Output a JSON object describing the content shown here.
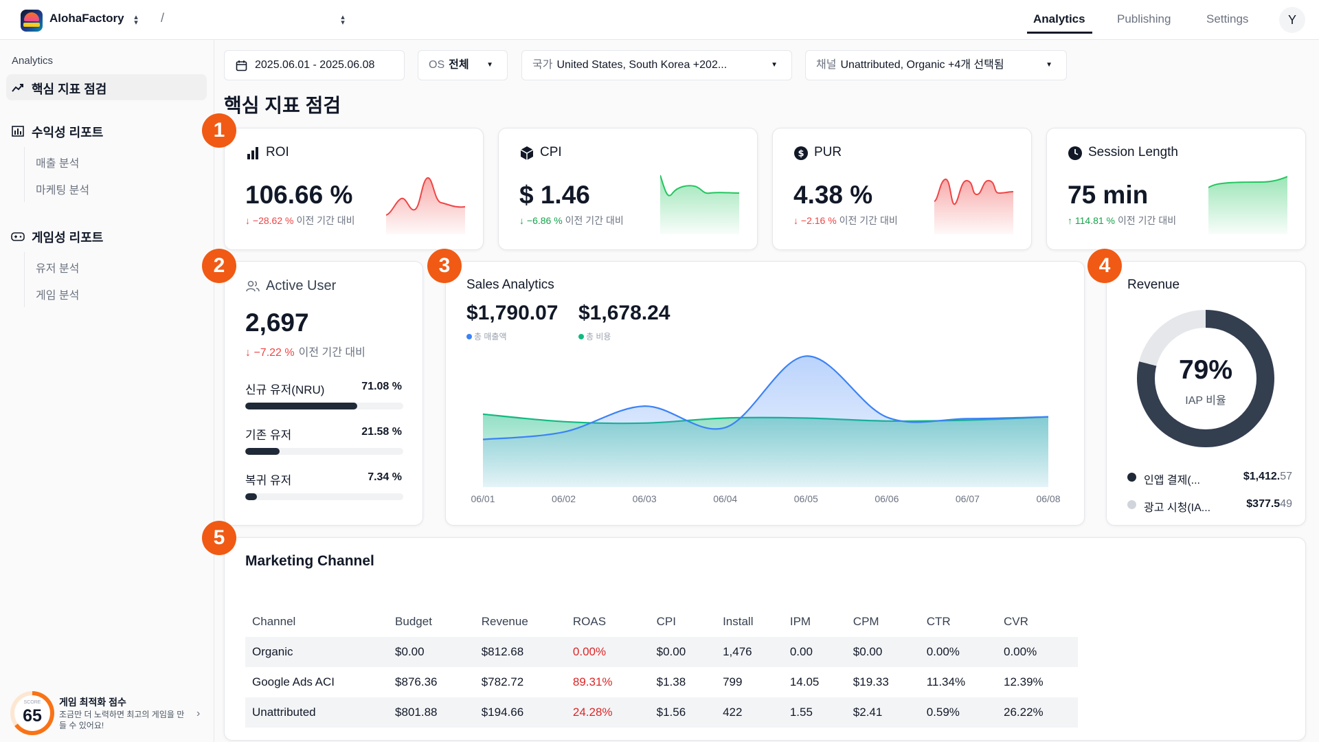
{
  "header": {
    "app_name": "AlohaFactory",
    "breadcrumb_separator": "/",
    "tabs": [
      {
        "label": "Analytics",
        "active": true
      },
      {
        "label": "Publishing",
        "active": false
      },
      {
        "label": "Settings",
        "active": false
      }
    ],
    "avatar_initial": "Y"
  },
  "sidebar": {
    "caption": "Analytics",
    "items": [
      {
        "label": "핵심 지표 점검",
        "icon": "trend-icon",
        "active": true
      },
      {
        "label": "수익성 리포트",
        "icon": "bar-chart-icon",
        "children": [
          "매출 분석",
          "마케팅 분석"
        ]
      },
      {
        "label": "게임성 리포트",
        "icon": "gamepad-icon",
        "children": [
          "유저 분석",
          "게임 분석"
        ]
      }
    ],
    "score": {
      "label": "SCORE",
      "value": "65",
      "value_fraction": 0.65,
      "title": "게임 최적화 점수",
      "desc": "조금만 더 노력하면 최고의 게임을 만들 수 있어요!",
      "accent": "#f97316"
    }
  },
  "filters": {
    "date_range": "2025.06.01 - 2025.06.08",
    "os_label": "OS",
    "os_value": "전체",
    "country_label": "국가",
    "country_value": "United States, South Korea +202...",
    "channel_label": "채널",
    "channel_value": "Unattributed, Organic +4개 선택됨"
  },
  "page_title": "핵심 지표 점검",
  "badges": [
    "1",
    "2",
    "3",
    "4",
    "5"
  ],
  "kpis": [
    {
      "title": "ROI",
      "icon": "bar-chart-icon",
      "value": "106.66 %",
      "delta": "−28.62 %",
      "direction": "down",
      "compare": "이전 기간 대비",
      "color": "#ef4444"
    },
    {
      "title": "CPI",
      "icon": "cube-icon",
      "value": "$ 1.46",
      "delta": "−6.86 %",
      "direction": "down-good",
      "compare": "이전 기간 대비",
      "color": "#22c55e"
    },
    {
      "title": "PUR",
      "icon": "dollar-circle-icon",
      "value": "4.38 %",
      "delta": "−2.16 %",
      "direction": "down",
      "compare": "이전 기간 대비",
      "color": "#ef4444"
    },
    {
      "title": "Session Length",
      "icon": "clock-icon",
      "value": "75 min",
      "delta": "114.81 %",
      "direction": "up",
      "compare": "이전 기간 대비",
      "color": "#22c55e"
    }
  ],
  "active_user": {
    "title": "Active User",
    "value": "2,697",
    "delta": "−7.22 %",
    "compare": "이전 기간 대비",
    "segments": [
      {
        "label": "신규 유저(NRU)",
        "pct_text": "71.08 %",
        "pct": 71.08
      },
      {
        "label": "기존 유저",
        "pct_text": "21.58 %",
        "pct": 21.58
      },
      {
        "label": "복귀 유저",
        "pct_text": "7.34 %",
        "pct": 7.34
      }
    ]
  },
  "sales": {
    "title": "Sales Analytics",
    "total_sales": "$1,790.07",
    "total_sales_label": "총 매출액",
    "total_cost": "$1,678.24",
    "total_cost_label": "총 비용",
    "sales_color": "#3b82f6",
    "cost_color": "#10b981"
  },
  "revenue": {
    "title": "Revenue",
    "pct": "79%",
    "pct_value": 79,
    "sub": "IAP 비율",
    "legend": [
      {
        "name": "인앱 결제(...",
        "value": "$1,412.",
        "cents": "57",
        "color": "#1f2937"
      },
      {
        "name": "광고 시청(IA...",
        "value": "$377.5",
        "cents": "49",
        "color": "#d1d5db"
      }
    ]
  },
  "marketing": {
    "title": "Marketing Channel",
    "columns": [
      "Channel",
      "Budget",
      "Revenue",
      "ROAS",
      "CPI",
      "Install",
      "IPM",
      "CPM",
      "CTR",
      "CVR"
    ],
    "rows": [
      [
        "Organic",
        "$0.00",
        "$812.68",
        "0.00%",
        "$0.00",
        "1,476",
        "0.00",
        "$0.00",
        "0.00%",
        "0.00%"
      ],
      [
        "Google Ads ACI",
        "$876.36",
        "$782.72",
        "89.31%",
        "$1.38",
        "799",
        "14.05",
        "$19.33",
        "11.34%",
        "12.39%"
      ],
      [
        "Unattributed",
        "$801.88",
        "$194.66",
        "24.28%",
        "$1.56",
        "422",
        "1.55",
        "$2.41",
        "0.59%",
        "26.22%"
      ]
    ]
  },
  "chart_data": {
    "type": "area",
    "x": [
      "06/01",
      "06/02",
      "06/03",
      "06/04",
      "06/05",
      "06/06",
      "06/07",
      "06/08"
    ],
    "series": [
      {
        "name": "총 매출액",
        "color": "#3b82f6",
        "values": [
          160,
          185,
          272,
          200,
          440,
          235,
          230,
          236
        ]
      },
      {
        "name": "총 비용",
        "color": "#10b981",
        "values": [
          245,
          220,
          215,
          232,
          232,
          222,
          225,
          236
        ]
      }
    ],
    "ylim": [
      0,
      480
    ],
    "grid": false,
    "legend": "top-left"
  }
}
